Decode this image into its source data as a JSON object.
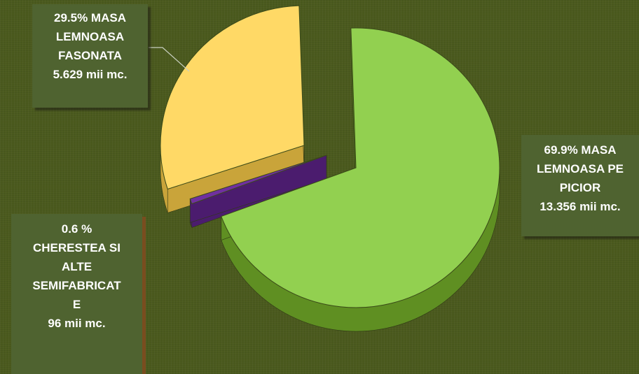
{
  "chart_data": {
    "type": "pie",
    "style": "3d-exploded",
    "slices": [
      {
        "key": "picior",
        "percent": 69.9,
        "value": 13.356,
        "unit": "mii mc.",
        "label": "69.9% MASA\nLEMNOASA PE\nPICIOR\n13.356 mii mc.",
        "top_color": "#92d050",
        "side_color": "#5f8f22"
      },
      {
        "key": "cherestea",
        "percent": 0.6,
        "value": 96,
        "unit": "mii mc.",
        "label": "0.6 %\nCHERESTEA SI\nALTE\nSEMIFABRICAT\nE\n96 mii mc.",
        "top_color": "#7030a0",
        "side_color": "#4b1c6e"
      },
      {
        "key": "fasonata",
        "percent": 29.5,
        "value": 5.629,
        "unit": "mii mc.",
        "label": "29.5%  MASA\nLEMNOASA\nFASONATA\n5.629 mii mc.",
        "top_color": "#ffd966",
        "side_color": "#c9a43a"
      }
    ],
    "colors": {
      "background": "#4b5a1e",
      "label_box": "#4f6330",
      "label_text": "#ffffff"
    }
  }
}
